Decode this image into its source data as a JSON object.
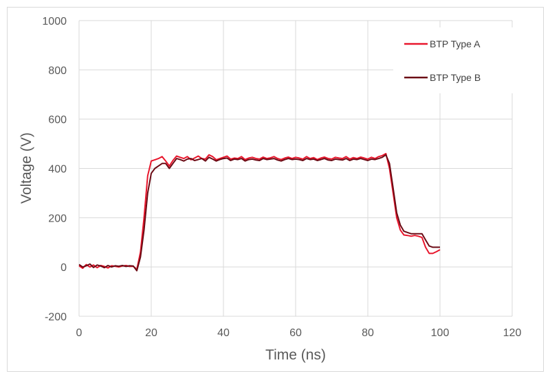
{
  "chart_data": {
    "type": "line",
    "title": "",
    "xlabel": "Time (ns)",
    "ylabel": "Voltage (V)",
    "xlim": [
      0,
      120
    ],
    "ylim": [
      -200,
      1000
    ],
    "xticks": [
      0,
      20,
      40,
      60,
      80,
      100,
      120
    ],
    "yticks": [
      -200,
      0,
      200,
      400,
      600,
      800,
      1000
    ],
    "grid": true,
    "legend_position": "top-right",
    "x_start": 0,
    "x_step": 1,
    "series": [
      {
        "name": "BTP Type A",
        "color": "#e8152b",
        "values": [
          5,
          -5,
          10,
          0,
          8,
          -3,
          6,
          2,
          -4,
          5,
          3,
          0,
          4,
          6,
          2,
          3,
          -10,
          60,
          200,
          370,
          430,
          435,
          440,
          448,
          430,
          410,
          432,
          450,
          445,
          440,
          448,
          435,
          442,
          450,
          440,
          438,
          455,
          448,
          435,
          440,
          445,
          450,
          438,
          442,
          440,
          448,
          436,
          442,
          445,
          440,
          438,
          446,
          440,
          443,
          448,
          440,
          436,
          442,
          446,
          440,
          445,
          442,
          438,
          448,
          440,
          444,
          436,
          442,
          446,
          440,
          438,
          445,
          442,
          440,
          448,
          438,
          444,
          440,
          446,
          442,
          438,
          445,
          440,
          448,
          452,
          460,
          400,
          300,
          200,
          150,
          130,
          128,
          125,
          128,
          125,
          120,
          80,
          55,
          55,
          62,
          70
        ]
      },
      {
        "name": "BTP Type B",
        "color": "#6b0a14",
        "values": [
          10,
          0,
          5,
          12,
          -2,
          8,
          4,
          -3,
          6,
          0,
          5,
          3,
          6,
          2,
          5,
          4,
          -15,
          40,
          150,
          300,
          380,
          400,
          410,
          420,
          420,
          400,
          420,
          440,
          436,
          430,
          438,
          440,
          432,
          436,
          440,
          430,
          445,
          438,
          430,
          436,
          440,
          442,
          432,
          438,
          436,
          440,
          430,
          436,
          438,
          434,
          432,
          440,
          436,
          438,
          440,
          434,
          430,
          436,
          440,
          436,
          438,
          436,
          432,
          440,
          436,
          438,
          432,
          436,
          440,
          434,
          432,
          438,
          436,
          434,
          440,
          432,
          438,
          436,
          440,
          436,
          432,
          438,
          436,
          440,
          445,
          455,
          420,
          320,
          220,
          170,
          145,
          140,
          135,
          135,
          135,
          135,
          110,
          85,
          80,
          80,
          80
        ]
      }
    ]
  }
}
